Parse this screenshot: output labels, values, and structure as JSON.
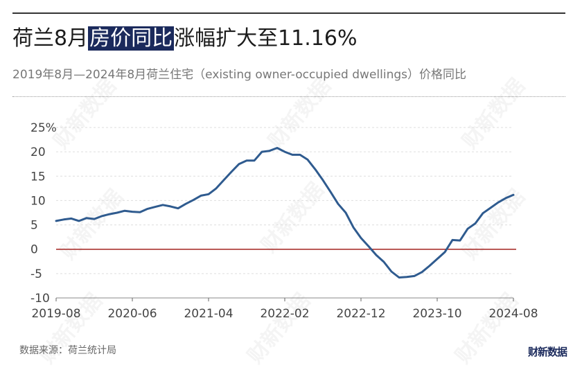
{
  "header": {
    "title_pre": "荷兰8月",
    "title_highlight": "房价同比",
    "title_post": "涨幅扩大至11.16%",
    "subtitle": "2019年8月—2024年8月荷兰住宅（existing owner-occupied dwellings）价格同比"
  },
  "footer": {
    "source": "数据来源：荷兰统计局",
    "brand": "财新数据"
  },
  "watermark_text": "财新数据",
  "colors": {
    "line": "#2f5b8f",
    "zero_line": "#a3231f",
    "highlight_bg": "#1b2a5c"
  },
  "chart_data": {
    "type": "line",
    "x_start": "2019-08",
    "x_end": "2024-08",
    "xticks": [
      "2019-08",
      "2020-06",
      "2021-04",
      "2022-02",
      "2022-12",
      "2023-10",
      "2024-08"
    ],
    "yticks": [
      "25%",
      "20",
      "15",
      "10",
      "5",
      "0",
      "-5",
      "-10"
    ],
    "ylim": [
      -10,
      25
    ],
    "grid": true,
    "reference_line": 0,
    "series": [
      {
        "values": [
          5.8,
          6.1,
          6.3,
          5.8,
          6.4,
          6.2,
          6.8,
          7.2,
          7.5,
          7.9,
          7.7,
          7.6,
          8.3,
          8.7,
          9.1,
          8.8,
          8.4,
          9.3,
          10.1,
          11.0,
          11.3,
          12.5,
          14.2,
          15.9,
          17.5,
          18.2,
          18.2,
          20.0,
          20.2,
          20.8,
          20.0,
          19.4,
          19.4,
          18.4,
          16.4,
          14.2,
          11.8,
          9.3,
          7.5,
          4.5,
          2.3,
          0.6,
          -1.2,
          -2.6,
          -4.6,
          -5.8,
          -5.7,
          -5.5,
          -4.7,
          -3.4,
          -2.0,
          -0.6,
          1.9,
          1.8,
          4.2,
          5.3,
          7.4,
          8.5,
          9.6,
          10.5,
          11.16
        ]
      }
    ]
  }
}
